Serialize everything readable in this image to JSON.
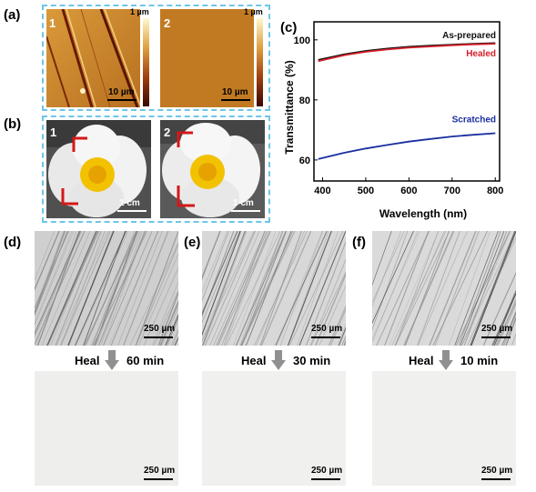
{
  "panels": {
    "a": {
      "label": "(a)",
      "sub1": "1",
      "sub2": "2",
      "cbar_max": "1 µm",
      "scale": "10 µm"
    },
    "b": {
      "label": "(b)",
      "sub1": "1",
      "sub2": "2",
      "scale": "1 cm"
    },
    "c": {
      "label": "(c)"
    },
    "d": {
      "label": "(d)",
      "scale": "250 µm",
      "heal_text": "Heal",
      "heal_time": "60 min"
    },
    "e": {
      "label": "(e)",
      "scale": "250 µm",
      "heal_text": "Heal",
      "heal_time": "30 min"
    },
    "f": {
      "label": "(f)",
      "scale": "250 µm",
      "heal_text": "Heal",
      "heal_time": "10 min"
    }
  },
  "colors": {
    "dash_border": "#6ec6e9",
    "healed": "#d4202a",
    "scratched": "#1a2fa0",
    "as_prepared": "#111111",
    "arrow": "#909090"
  },
  "chart_data": {
    "type": "line",
    "xlabel": "Wavelength (nm)",
    "ylabel": "Transmittance (%)",
    "xlim": [
      380,
      810
    ],
    "ylim": [
      53,
      106
    ],
    "xticks": [
      400,
      500,
      600,
      700,
      800
    ],
    "yticks": [
      60,
      80,
      100
    ],
    "series": [
      {
        "name": "As-prepared",
        "color": "#111111",
        "x": [
          390,
          450,
          500,
          550,
          600,
          650,
          700,
          750,
          800
        ],
        "y": [
          93.3,
          95.2,
          96.3,
          97.1,
          97.7,
          98.1,
          98.4,
          98.7,
          98.9
        ]
      },
      {
        "name": "Healed",
        "color": "#d4202a",
        "x": [
          390,
          450,
          500,
          550,
          600,
          650,
          700,
          750,
          800
        ],
        "y": [
          92.9,
          94.9,
          96.0,
          96.8,
          97.4,
          97.8,
          98.2,
          98.5,
          98.7
        ]
      },
      {
        "name": "Scratched",
        "color": "#1a2fa0",
        "x": [
          390,
          450,
          500,
          550,
          600,
          650,
          700,
          750,
          800
        ],
        "y": [
          60.3,
          62.4,
          63.8,
          65.0,
          66.1,
          67.0,
          67.8,
          68.4,
          68.9
        ]
      }
    ],
    "legend_labels": [
      "As-prepared",
      "Healed",
      "Scratched"
    ]
  }
}
